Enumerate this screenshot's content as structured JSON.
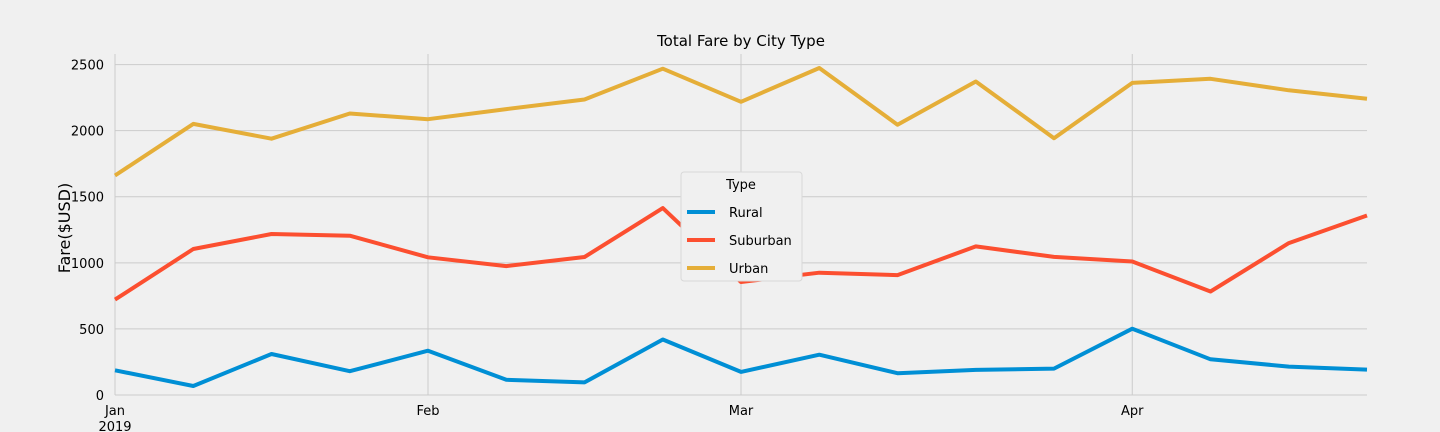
{
  "chart_data": {
    "type": "line",
    "title": "Total Fare by City Type",
    "xlabel": "",
    "ylabel": "Fare($USD)",
    "ylim": [
      0,
      2580
    ],
    "xlim": [
      "2019-01-06",
      "2019-04-28"
    ],
    "grid": true,
    "x": [
      "2019-01-06",
      "2019-01-13",
      "2019-01-20",
      "2019-01-27",
      "2019-02-03",
      "2019-02-10",
      "2019-02-17",
      "2019-02-24",
      "2019-03-03",
      "2019-03-10",
      "2019-03-17",
      "2019-03-24",
      "2019-03-31",
      "2019-04-07",
      "2019-04-14",
      "2019-04-21",
      "2019-04-28"
    ],
    "yticks": [
      0,
      500,
      1000,
      1500,
      2000,
      2500
    ],
    "xticks": [
      {
        "date": "2019-01-06",
        "label": "Jan",
        "sublabel": "2019"
      },
      {
        "date": "2019-02-03",
        "label": "Feb",
        "sublabel": ""
      },
      {
        "date": "2019-03-03",
        "label": "Mar",
        "sublabel": ""
      },
      {
        "date": "2019-04-07",
        "label": "Apr",
        "sublabel": ""
      }
    ],
    "legend": {
      "title": "Type",
      "placement": "center"
    },
    "series": [
      {
        "name": "Rural",
        "color": "#008fd5",
        "values": [
          187,
          68,
          310,
          180,
          335,
          115,
          95,
          420,
          175,
          305,
          165,
          190,
          200,
          502,
          270,
          215,
          192
        ]
      },
      {
        "name": "Suburban",
        "color": "#fc4f30",
        "values": [
          722,
          1105,
          1218,
          1205,
          1042,
          975,
          1044,
          1414,
          855,
          925,
          907,
          1124,
          1045,
          1010,
          783,
          1149,
          1358
        ]
      },
      {
        "name": "Urban",
        "color": "#e5ae38",
        "values": [
          1661,
          2051,
          1939,
          2130,
          2087,
          2163,
          2236,
          2469,
          2218,
          2474,
          2045,
          2372,
          1943,
          2361,
          2392,
          2305,
          2241
        ]
      }
    ]
  }
}
